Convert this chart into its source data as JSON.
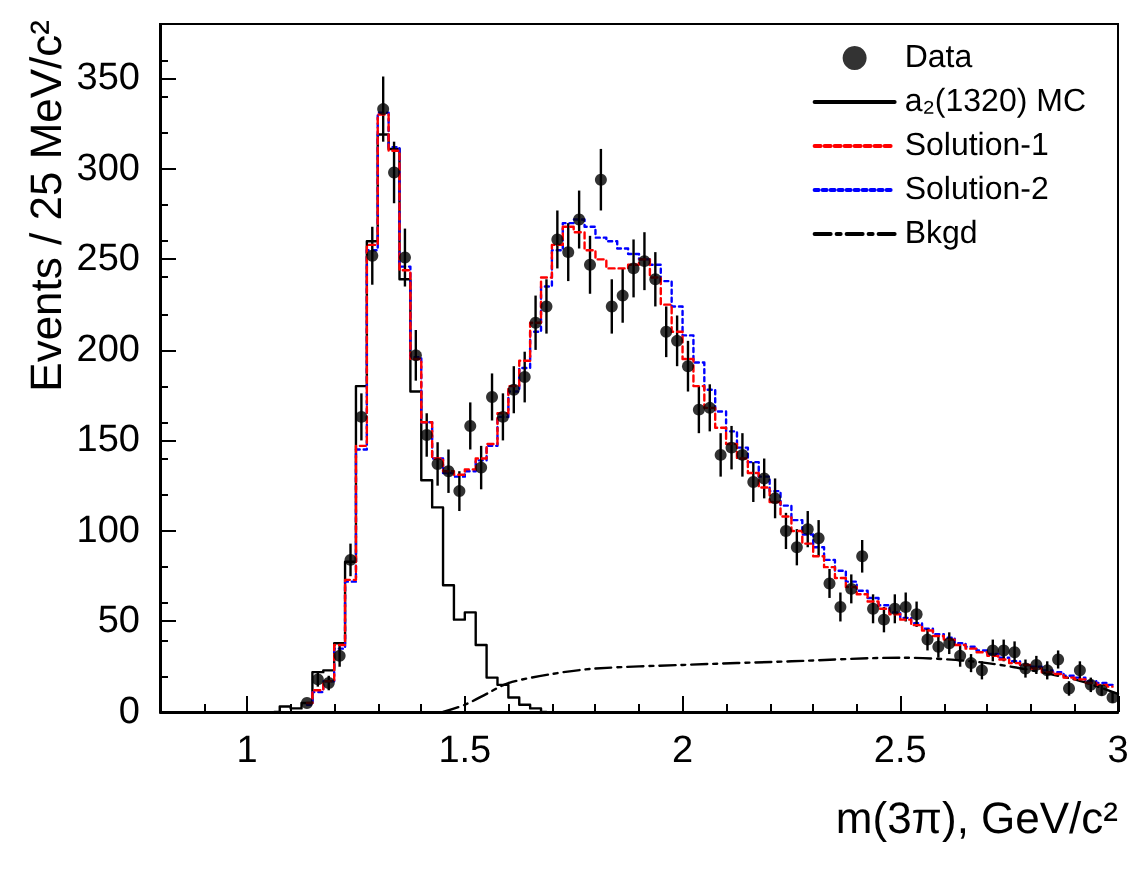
{
  "chart_data": {
    "type": "scatter",
    "xlabel": "m(3π), GeV/c²",
    "ylabel": "Events / 25 MeV/c²",
    "xlim": [
      0.8,
      3
    ],
    "xticks": [
      1,
      1.5,
      2,
      2.5,
      3
    ],
    "ylim": [
      0,
      380
    ],
    "yticks": [
      0,
      50,
      100,
      150,
      200,
      250,
      300,
      350
    ],
    "grid": false,
    "legend": "top right",
    "series": [
      {
        "name": "Data",
        "marker": "circle",
        "color": "#000000",
        "x": [
          1.1375,
          1.1625,
          1.1875,
          1.2125,
          1.2375,
          1.2625,
          1.2875,
          1.3125,
          1.3375,
          1.3625,
          1.3875,
          1.4125,
          1.4375,
          1.4625,
          1.4875,
          1.5125,
          1.5375,
          1.5625,
          1.5875,
          1.6125,
          1.6375,
          1.6625,
          1.6875,
          1.7125,
          1.7375,
          1.7625,
          1.7875,
          1.8125,
          1.8375,
          1.8625,
          1.8875,
          1.9125,
          1.9375,
          1.9625,
          1.9875,
          2.0125,
          2.0375,
          2.0625,
          2.0875,
          2.1125,
          2.1375,
          2.1625,
          2.1875,
          2.2125,
          2.2375,
          2.2625,
          2.2875,
          2.3125,
          2.3375,
          2.3625,
          2.3875,
          2.4125,
          2.4375,
          2.4625,
          2.4875,
          2.5125,
          2.5375,
          2.5625,
          2.5875,
          2.6125,
          2.6375,
          2.6625,
          2.6875,
          2.7125,
          2.7375,
          2.7625,
          2.7875,
          2.8125,
          2.8375,
          2.8625,
          2.8875,
          2.9125,
          2.9375,
          2.9625,
          2.9875
        ],
        "values": [
          5,
          18,
          16,
          31,
          84,
          163,
          252,
          333,
          298,
          251,
          197,
          153,
          137,
          133,
          122,
          158,
          135,
          174,
          163,
          178,
          185,
          215,
          224,
          261,
          254,
          272,
          247,
          294,
          224,
          230,
          245,
          249,
          239,
          210,
          205,
          191,
          167,
          168,
          142,
          146,
          142,
          127,
          129,
          118,
          100,
          91,
          101,
          96,
          71,
          58,
          68,
          86,
          57,
          51,
          57,
          58,
          54,
          40,
          36,
          38,
          31,
          27,
          23,
          34,
          34,
          33,
          24,
          26,
          23,
          29,
          13,
          23,
          15,
          12,
          8
        ],
        "errors": [
          null,
          4,
          4,
          6,
          9,
          13,
          16,
          18,
          17,
          16,
          14,
          12,
          12,
          12,
          11,
          13,
          12,
          13,
          13,
          13,
          14,
          15,
          15,
          16,
          16,
          16,
          16,
          17,
          15,
          15,
          16,
          16,
          15,
          14,
          14,
          14,
          13,
          13,
          12,
          12,
          12,
          11,
          11,
          11,
          10,
          10,
          10,
          10,
          8,
          8,
          8,
          9,
          8,
          7,
          8,
          8,
          7,
          6,
          6,
          6,
          6,
          5,
          5,
          6,
          6,
          6,
          5,
          5,
          5,
          5,
          4,
          5,
          4,
          3,
          3
        ]
      },
      {
        "name": "a₂(1320) MC",
        "type": "step",
        "line_style": "solid",
        "color": "#000000",
        "x": [
          1.0625,
          1.0875,
          1.1125,
          1.1375,
          1.1625,
          1.1875,
          1.2125,
          1.2375,
          1.2625,
          1.2875,
          1.3125,
          1.3375,
          1.3625,
          1.3875,
          1.4125,
          1.4375,
          1.4625,
          1.4875,
          1.5125,
          1.5375,
          1.5625,
          1.5875,
          1.6125,
          1.6375,
          1.6625,
          1.6875
        ],
        "values": [
          0,
          3,
          2,
          5,
          22,
          23,
          38,
          83,
          180,
          260,
          319,
          311,
          239,
          177,
          128,
          113,
          70,
          51,
          55,
          37,
          19,
          15,
          8,
          4,
          2,
          0
        ]
      },
      {
        "name": "Solution-1",
        "type": "step",
        "line_style": "dashed",
        "color": "#ff0000",
        "x": [
          1.1375,
          1.1625,
          1.1875,
          1.2125,
          1.2375,
          1.2625,
          1.2875,
          1.3125,
          1.3375,
          1.3625,
          1.3875,
          1.4125,
          1.4375,
          1.4625,
          1.4875,
          1.5125,
          1.5375,
          1.5625,
          1.5875,
          1.6125,
          1.6375,
          1.6625,
          1.6875,
          1.7125,
          1.7375,
          1.7625,
          1.7875,
          1.8125,
          1.8375,
          1.8625,
          1.8875,
          1.9125,
          1.9375,
          1.9625,
          1.9875,
          2.0125,
          2.0375,
          2.0625,
          2.0875,
          2.1125,
          2.1375,
          2.1625,
          2.1875,
          2.2125,
          2.2375,
          2.2625,
          2.2875,
          2.3125,
          2.3375,
          2.3625,
          2.3875,
          2.4125,
          2.4375,
          2.4625,
          2.4875,
          2.5125,
          2.5375,
          2.5625,
          2.5875,
          2.6125,
          2.6375,
          2.6625,
          2.6875,
          2.7125,
          2.7375,
          2.7625,
          2.7875,
          2.8125,
          2.8375,
          2.8625,
          2.8875,
          2.9125,
          2.9375,
          2.9625,
          2.9875
        ],
        "values": [
          5,
          12,
          17,
          37,
          73,
          147,
          258,
          330,
          310,
          244,
          195,
          160,
          140,
          133,
          131,
          134,
          140,
          148,
          165,
          180,
          194,
          215,
          240,
          258,
          268,
          265,
          255,
          250,
          245,
          245,
          247,
          250,
          240,
          225,
          210,
          195,
          180,
          168,
          157,
          148,
          140,
          132,
          124,
          116,
          108,
          100,
          93,
          86,
          80,
          74,
          69,
          65,
          61,
          57,
          54,
          51,
          48,
          45,
          42,
          40,
          37,
          35,
          33,
          31,
          29,
          27,
          26,
          24,
          22,
          21,
          19,
          18,
          16,
          15,
          14
        ]
      },
      {
        "name": "Solution-2",
        "type": "step",
        "line_style": "dotted",
        "color": "#0000ff",
        "x": [
          1.1375,
          1.1625,
          1.1875,
          1.2125,
          1.2375,
          1.2625,
          1.2875,
          1.3125,
          1.3375,
          1.3625,
          1.3875,
          1.4125,
          1.4375,
          1.4625,
          1.4875,
          1.5125,
          1.5375,
          1.5625,
          1.5875,
          1.6125,
          1.6375,
          1.6625,
          1.6875,
          1.7125,
          1.7375,
          1.7625,
          1.7875,
          1.8125,
          1.8375,
          1.8625,
          1.8875,
          1.9125,
          1.9375,
          1.9625,
          1.9875,
          2.0125,
          2.0375,
          2.0625,
          2.0875,
          2.1125,
          2.1375,
          2.1625,
          2.1875,
          2.2125,
          2.2375,
          2.2625,
          2.2875,
          2.3125,
          2.3375,
          2.3625,
          2.3875,
          2.4125,
          2.4375,
          2.4625,
          2.4875,
          2.5125,
          2.5375,
          2.5625,
          2.5875,
          2.6125,
          2.6375,
          2.6625,
          2.6875,
          2.7125,
          2.7375,
          2.7625,
          2.7875,
          2.8125,
          2.8375,
          2.8625,
          2.8875,
          2.9125,
          2.9375,
          2.9625,
          2.9875
        ],
        "values": [
          4,
          11,
          17,
          35,
          72,
          145,
          255,
          331,
          312,
          246,
          196,
          160,
          140,
          132,
          130,
          133,
          139,
          147,
          163,
          177,
          190,
          210,
          235,
          255,
          270,
          272,
          268,
          262,
          260,
          256,
          253,
          250,
          247,
          238,
          224,
          208,
          193,
          178,
          166,
          155,
          146,
          138,
          130,
          122,
          114,
          106,
          98,
          91,
          84,
          78,
          72,
          67,
          63,
          59,
          55,
          52,
          49,
          46,
          43,
          41,
          38,
          36,
          34,
          32,
          30,
          28,
          26,
          25,
          23,
          22,
          20,
          19,
          17,
          16,
          15
        ]
      },
      {
        "name": "Bkgd",
        "type": "line",
        "line_style": "dashdot",
        "color": "#000000",
        "x": [
          1.45,
          1.5,
          1.55,
          1.6,
          1.7,
          1.8,
          2.0,
          2.25,
          2.5,
          2.7,
          2.9,
          3.0
        ],
        "values": [
          0,
          4,
          10,
          16,
          21,
          24,
          26,
          28,
          30,
          27,
          18,
          10
        ]
      }
    ]
  }
}
